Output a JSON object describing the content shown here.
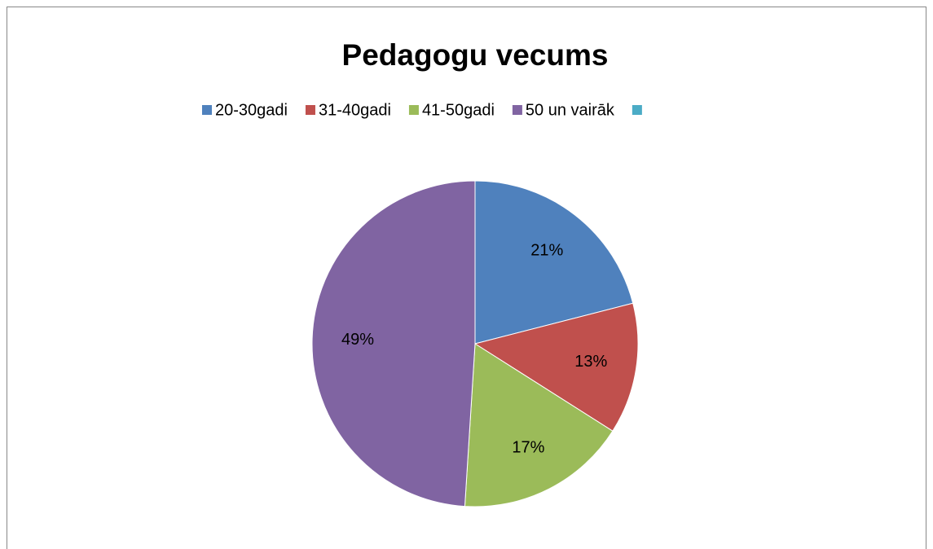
{
  "chart_data": {
    "type": "pie",
    "title": "Pedagogu vecums",
    "categories": [
      "20-30gadi",
      "31-40gadi",
      "41-50gadi",
      "50 un vairāk",
      null
    ],
    "values": [
      21,
      13,
      17,
      49,
      0
    ],
    "value_labels": [
      "21%",
      "13%",
      "17%",
      "49%",
      null
    ],
    "colors": [
      "#4f81bd",
      "#c0504d",
      "#9bbb59",
      "#8064a2",
      "#4bacc6"
    ],
    "legend": "top"
  }
}
